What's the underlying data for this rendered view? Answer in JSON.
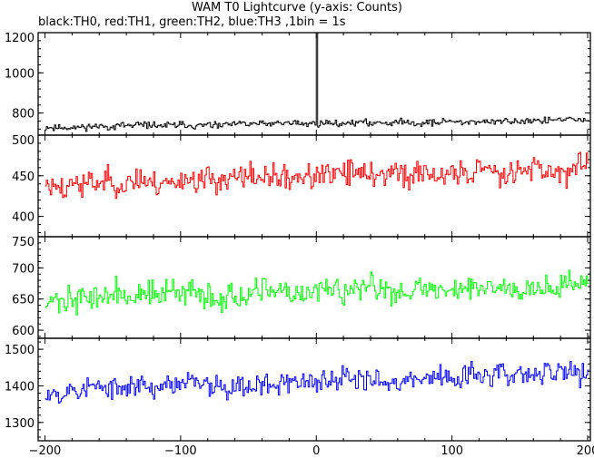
{
  "title": "WAM T0 Lightcurve (y-axis: Counts)",
  "subtitle": "black:TH0, red:TH1, green:TH2, blue:TH3 ,1bin = 1s",
  "chart_data": {
    "type": "line",
    "title": "WAM T0 Lightcurve (y-axis: Counts)",
    "subtitle": "black:TH0, red:TH1, green:TH2, blue:TH3 ,1bin = 1s",
    "xlim": [
      -205,
      202
    ],
    "xticks": [
      -200,
      -100,
      0,
      100,
      200
    ],
    "panels": [
      {
        "series_label": "TH0",
        "color": "#000000",
        "ylim": [
          690,
          1200
        ],
        "yticks": [
          800,
          1000,
          1200
        ],
        "x_start": -200,
        "x_end": 200,
        "x_step": 1,
        "baseline_start": 730,
        "baseline_end": 765,
        "noise_amplitude": 24,
        "spike": {
          "x": 0,
          "value": 1200
        },
        "seed": 11
      },
      {
        "series_label": "TH1",
        "color": "#ff0000",
        "ylim": [
          375,
          500
        ],
        "yticks": [
          400,
          450,
          500
        ],
        "x_start": -200,
        "x_end": 200,
        "x_step": 1,
        "baseline_start": 440,
        "baseline_end": 458,
        "noise_amplitude": 23,
        "seed": 23
      },
      {
        "series_label": "TH2",
        "color": "#00ff00",
        "ylim": [
          587,
          750
        ],
        "yticks": [
          600,
          650,
          700,
          750
        ],
        "x_start": -200,
        "x_end": 200,
        "x_step": 1,
        "baseline_start": 652,
        "baseline_end": 672,
        "noise_amplitude": 30,
        "seed": 37
      },
      {
        "series_label": "TH3",
        "color": "#0000ff",
        "ylim": [
          1250,
          1530
        ],
        "yticks": [
          1300,
          1400,
          1500
        ],
        "x_start": -200,
        "x_end": 200,
        "x_step": 1,
        "baseline_start": 1388,
        "baseline_end": 1435,
        "noise_amplitude": 45,
        "seed": 53
      }
    ]
  }
}
